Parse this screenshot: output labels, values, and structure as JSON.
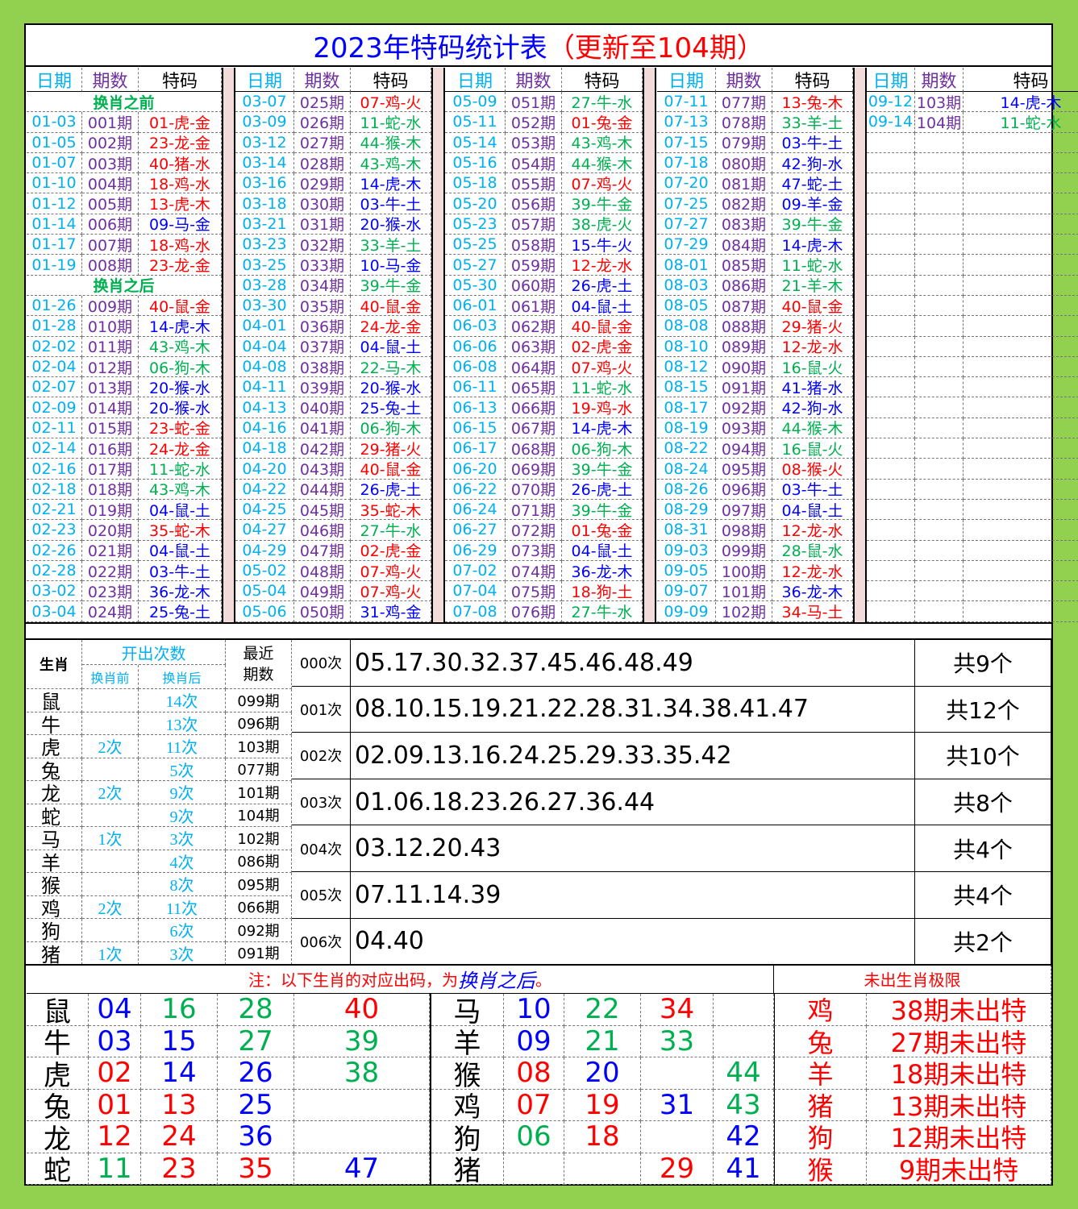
{
  "title": {
    "main": "2023年特码统计表",
    "update": "（更新至104期）"
  },
  "top": {
    "headers": [
      "日期",
      "期数",
      "特码"
    ],
    "groups": [
      {
        "rows": [
          "换肖之前",
          [
            "01-03",
            "001期",
            "01-虎-金",
            "#ff0000"
          ],
          [
            "01-05",
            "002期",
            "23-龙-金",
            "#ff0000"
          ],
          [
            "01-07",
            "003期",
            "40-猪-水",
            "#ff0000"
          ],
          [
            "01-10",
            "004期",
            "18-鸡-水",
            "#ff0000"
          ],
          [
            "01-12",
            "005期",
            "13-虎-木",
            "#ff0000"
          ],
          [
            "01-14",
            "006期",
            "09-马-金",
            "#0000ff"
          ],
          [
            "01-17",
            "007期",
            "18-鸡-水",
            "#ff0000"
          ],
          [
            "01-19",
            "008期",
            "23-龙-金",
            "#ff0000"
          ],
          "换肖之后",
          [
            "01-26",
            "009期",
            "40-鼠-金",
            "#ff0000"
          ],
          [
            "01-28",
            "010期",
            "14-虎-木",
            "#0000ff"
          ],
          [
            "02-02",
            "011期",
            "43-鸡-木",
            "#00b050"
          ],
          [
            "02-04",
            "012期",
            "06-狗-木",
            "#00b050"
          ],
          [
            "02-07",
            "013期",
            "20-猴-水",
            "#0000ff"
          ],
          [
            "02-09",
            "014期",
            "20-猴-水",
            "#0000ff"
          ],
          [
            "02-11",
            "015期",
            "23-蛇-金",
            "#ff0000"
          ],
          [
            "02-14",
            "016期",
            "24-龙-金",
            "#ff0000"
          ],
          [
            "02-16",
            "017期",
            "11-蛇-水",
            "#00b050"
          ],
          [
            "02-18",
            "018期",
            "43-鸡-木",
            "#00b050"
          ],
          [
            "02-21",
            "019期",
            "04-鼠-土",
            "#0000ff"
          ],
          [
            "02-23",
            "020期",
            "35-蛇-木",
            "#ff0000"
          ],
          [
            "02-26",
            "021期",
            "04-鼠-土",
            "#0000ff"
          ],
          [
            "02-28",
            "022期",
            "03-牛-土",
            "#0000ff"
          ],
          [
            "03-02",
            "023期",
            "36-龙-木",
            "#0000ff"
          ],
          [
            "03-04",
            "024期",
            "25-兔-土",
            "#0000ff"
          ]
        ]
      },
      {
        "rows": [
          [
            "03-07",
            "025期",
            "07-鸡-火",
            "#ff0000"
          ],
          [
            "03-09",
            "026期",
            "11-蛇-水",
            "#00b050"
          ],
          [
            "03-12",
            "027期",
            "44-猴-木",
            "#00b050"
          ],
          [
            "03-14",
            "028期",
            "43-鸡-木",
            "#00b050"
          ],
          [
            "03-16",
            "029期",
            "14-虎-木",
            "#0000ff"
          ],
          [
            "03-18",
            "030期",
            "03-牛-土",
            "#0000ff"
          ],
          [
            "03-21",
            "031期",
            "20-猴-水",
            "#0000ff"
          ],
          [
            "03-23",
            "032期",
            "33-羊-土",
            "#00b050"
          ],
          [
            "03-25",
            "033期",
            "10-马-金",
            "#0000ff"
          ],
          [
            "03-28",
            "034期",
            "39-牛-金",
            "#00b050"
          ],
          [
            "03-30",
            "035期",
            "40-鼠-金",
            "#ff0000"
          ],
          [
            "04-01",
            "036期",
            "24-龙-金",
            "#ff0000"
          ],
          [
            "04-04",
            "037期",
            "04-鼠-土",
            "#0000ff"
          ],
          [
            "04-08",
            "038期",
            "22-马-木",
            "#00b050"
          ],
          [
            "04-11",
            "039期",
            "20-猴-水",
            "#0000ff"
          ],
          [
            "04-13",
            "040期",
            "25-兔-土",
            "#0000ff"
          ],
          [
            "04-16",
            "041期",
            "06-狗-木",
            "#00b050"
          ],
          [
            "04-18",
            "042期",
            "29-猪-火",
            "#ff0000"
          ],
          [
            "04-20",
            "043期",
            "40-鼠-金",
            "#ff0000"
          ],
          [
            "04-22",
            "044期",
            "26-虎-土",
            "#0000ff"
          ],
          [
            "04-25",
            "045期",
            "35-蛇-木",
            "#ff0000"
          ],
          [
            "04-27",
            "046期",
            "27-牛-水",
            "#00b050"
          ],
          [
            "04-29",
            "047期",
            "02-虎-金",
            "#ff0000"
          ],
          [
            "05-02",
            "048期",
            "07-鸡-火",
            "#ff0000"
          ],
          [
            "05-04",
            "049期",
            "07-鸡-火",
            "#ff0000"
          ],
          [
            "05-06",
            "050期",
            "31-鸡-金",
            "#0000ff"
          ]
        ]
      },
      {
        "rows": [
          [
            "05-09",
            "051期",
            "27-牛-水",
            "#00b050"
          ],
          [
            "05-11",
            "052期",
            "01-兔-金",
            "#ff0000"
          ],
          [
            "05-14",
            "053期",
            "43-鸡-木",
            "#00b050"
          ],
          [
            "05-16",
            "054期",
            "44-猴-木",
            "#00b050"
          ],
          [
            "05-18",
            "055期",
            "07-鸡-火",
            "#ff0000"
          ],
          [
            "05-20",
            "056期",
            "39-牛-金",
            "#00b050"
          ],
          [
            "05-23",
            "057期",
            "38-虎-火",
            "#00b050"
          ],
          [
            "05-25",
            "058期",
            "15-牛-火",
            "#0000ff"
          ],
          [
            "05-27",
            "059期",
            "12-龙-水",
            "#ff0000"
          ],
          [
            "05-30",
            "060期",
            "26-虎-土",
            "#0000ff"
          ],
          [
            "06-01",
            "061期",
            "04-鼠-土",
            "#0000ff"
          ],
          [
            "06-03",
            "062期",
            "40-鼠-金",
            "#ff0000"
          ],
          [
            "06-06",
            "063期",
            "02-虎-金",
            "#ff0000"
          ],
          [
            "06-08",
            "064期",
            "07-鸡-火",
            "#ff0000"
          ],
          [
            "06-11",
            "065期",
            "11-蛇-水",
            "#00b050"
          ],
          [
            "06-13",
            "066期",
            "19-鸡-水",
            "#ff0000"
          ],
          [
            "06-15",
            "067期",
            "14-虎-木",
            "#0000ff"
          ],
          [
            "06-17",
            "068期",
            "06-狗-木",
            "#00b050"
          ],
          [
            "06-20",
            "069期",
            "39-牛-金",
            "#00b050"
          ],
          [
            "06-22",
            "070期",
            "26-虎-土",
            "#0000ff"
          ],
          [
            "06-24",
            "071期",
            "39-牛-金",
            "#00b050"
          ],
          [
            "06-27",
            "072期",
            "01-兔-金",
            "#ff0000"
          ],
          [
            "06-29",
            "073期",
            "04-鼠-土",
            "#0000ff"
          ],
          [
            "07-02",
            "074期",
            "36-龙-木",
            "#0000ff"
          ],
          [
            "07-04",
            "075期",
            "18-狗-土",
            "#ff0000"
          ],
          [
            "07-08",
            "076期",
            "27-牛-水",
            "#00b050"
          ]
        ]
      },
      {
        "rows": [
          [
            "07-11",
            "077期",
            "13-兔-木",
            "#ff0000"
          ],
          [
            "07-13",
            "078期",
            "33-羊-土",
            "#00b050"
          ],
          [
            "07-15",
            "079期",
            "03-牛-土",
            "#0000ff"
          ],
          [
            "07-18",
            "080期",
            "42-狗-水",
            "#0000ff"
          ],
          [
            "07-20",
            "081期",
            "47-蛇-土",
            "#0000ff"
          ],
          [
            "07-25",
            "082期",
            "09-羊-金",
            "#0000ff"
          ],
          [
            "07-27",
            "083期",
            "39-牛-金",
            "#00b050"
          ],
          [
            "07-29",
            "084期",
            "14-虎-木",
            "#0000ff"
          ],
          [
            "08-01",
            "085期",
            "11-蛇-水",
            "#00b050"
          ],
          [
            "08-03",
            "086期",
            "21-羊-木",
            "#00b050"
          ],
          [
            "08-05",
            "087期",
            "40-鼠-金",
            "#ff0000"
          ],
          [
            "08-08",
            "088期",
            "29-猪-火",
            "#ff0000"
          ],
          [
            "08-10",
            "089期",
            "12-龙-水",
            "#ff0000"
          ],
          [
            "08-12",
            "090期",
            "16-鼠-火",
            "#00b050"
          ],
          [
            "08-15",
            "091期",
            "41-猪-水",
            "#0000ff"
          ],
          [
            "08-17",
            "092期",
            "42-狗-水",
            "#0000ff"
          ],
          [
            "08-19",
            "093期",
            "44-猴-木",
            "#00b050"
          ],
          [
            "08-22",
            "094期",
            "16-鼠-火",
            "#00b050"
          ],
          [
            "08-24",
            "095期",
            "08-猴-火",
            "#ff0000"
          ],
          [
            "08-26",
            "096期",
            "03-牛-土",
            "#0000ff"
          ],
          [
            "08-29",
            "097期",
            "04-鼠-土",
            "#0000ff"
          ],
          [
            "08-31",
            "098期",
            "12-龙-水",
            "#ff0000"
          ],
          [
            "09-03",
            "099期",
            "28-鼠-水",
            "#00b050"
          ],
          [
            "09-05",
            "100期",
            "12-龙-水",
            "#ff0000"
          ],
          [
            "09-07",
            "101期",
            "36-龙-木",
            "#0000ff"
          ],
          [
            "09-09",
            "102期",
            "34-马-土",
            "#ff0000"
          ]
        ]
      },
      {
        "rows": [
          [
            "09-12",
            "103期",
            "14-虎-木",
            "#0000ff"
          ],
          [
            "09-14",
            "104期",
            "11-蛇-水",
            "#00b050"
          ]
        ]
      }
    ]
  },
  "zodiac_table": {
    "header": {
      "zodiac": "生肖",
      "count": "开出次数",
      "before": "换肖前",
      "after": "换肖后",
      "recent": "最近期数"
    },
    "rows": [
      [
        "鼠",
        null,
        "14次",
        "099期"
      ],
      [
        "牛",
        null,
        "13次",
        "096期"
      ],
      [
        "虎",
        "2次",
        "11次",
        "103期"
      ],
      [
        "兔",
        null,
        "5次",
        "077期"
      ],
      [
        "龙",
        "2次",
        "9次",
        "101期"
      ],
      [
        "蛇",
        null,
        "9次",
        "104期"
      ],
      [
        "马",
        "1次",
        "3次",
        "102期"
      ],
      [
        "羊",
        null,
        "4次",
        "086期"
      ],
      [
        "猴",
        null,
        "8次",
        "095期"
      ],
      [
        "鸡",
        "2次",
        "11次",
        "066期"
      ],
      [
        "狗",
        null,
        "6次",
        "092期"
      ],
      [
        "猪",
        "1次",
        "3次",
        "091期"
      ]
    ]
  },
  "frequency_table": {
    "rows": [
      [
        "000次",
        "05.17.30.32.37.45.46.48.49",
        "共9个"
      ],
      [
        "001次",
        "08.10.15.19.21.22.28.31.34.38.41.47",
        "共12个"
      ],
      [
        "002次",
        "02.09.13.16.24.25.29.33.35.42",
        "共10个"
      ],
      [
        "003次",
        "01.06.18.23.26.27.36.44",
        "共8个"
      ],
      [
        "004次",
        "03.12.20.43",
        "共4个"
      ],
      [
        "005次",
        "07.11.14.39",
        "共4个"
      ],
      [
        "006次",
        "04.40",
        "共2个"
      ]
    ]
  },
  "bottom": {
    "note": {
      "prefix": "注：以下生肖的对应出码，为",
      "emphasis": "换肖之后",
      "suffix": "。"
    },
    "limit_header": "未出生肖极限",
    "left_rows": [
      {
        "zodiac": "鼠",
        "numbers": [
          [
            "04",
            "#0000ff"
          ],
          [
            "16",
            "#00b050"
          ],
          [
            "28",
            "#00b050"
          ],
          [
            "40",
            "#ff0000"
          ]
        ]
      },
      {
        "zodiac": "牛",
        "numbers": [
          [
            "03",
            "#0000ff"
          ],
          [
            "15",
            "#0000ff"
          ],
          [
            "27",
            "#00b050"
          ],
          [
            "39",
            "#00b050"
          ]
        ]
      },
      {
        "zodiac": "虎",
        "numbers": [
          [
            "02",
            "#ff0000"
          ],
          [
            "14",
            "#0000ff"
          ],
          [
            "26",
            "#0000ff"
          ],
          [
            "38",
            "#00b050"
          ]
        ]
      },
      {
        "zodiac": "兔",
        "numbers": [
          [
            "01",
            "#ff0000"
          ],
          [
            "13",
            "#ff0000"
          ],
          [
            "25",
            "#0000ff"
          ],
          null
        ]
      },
      {
        "zodiac": "龙",
        "numbers": [
          [
            "12",
            "#ff0000"
          ],
          [
            "24",
            "#ff0000"
          ],
          [
            "36",
            "#0000ff"
          ],
          null
        ]
      },
      {
        "zodiac": "蛇",
        "numbers": [
          [
            "11",
            "#00b050"
          ],
          [
            "23",
            "#ff0000"
          ],
          [
            "35",
            "#ff0000"
          ],
          [
            "47",
            "#0000ff"
          ]
        ]
      }
    ],
    "right_rows": [
      {
        "zodiac": "马",
        "numbers": [
          [
            "10",
            "#0000ff"
          ],
          [
            "22",
            "#00b050"
          ],
          [
            "34",
            "#ff0000"
          ],
          null
        ]
      },
      {
        "zodiac": "羊",
        "numbers": [
          [
            "09",
            "#0000ff"
          ],
          [
            "21",
            "#00b050"
          ],
          [
            "33",
            "#00b050"
          ],
          null
        ]
      },
      {
        "zodiac": "猴",
        "numbers": [
          [
            "08",
            "#ff0000"
          ],
          [
            "20",
            "#0000ff"
          ],
          null,
          [
            "44",
            "#00b050"
          ]
        ]
      },
      {
        "zodiac": "鸡",
        "numbers": [
          [
            "07",
            "#ff0000"
          ],
          [
            "19",
            "#ff0000"
          ],
          [
            "31",
            "#0000ff"
          ],
          [
            "43",
            "#00b050"
          ]
        ]
      },
      {
        "zodiac": "狗",
        "numbers": [
          [
            "06",
            "#00b050"
          ],
          [
            "18",
            "#ff0000"
          ],
          null,
          [
            "42",
            "#0000ff"
          ]
        ]
      },
      {
        "zodiac": "猪",
        "numbers": [
          null,
          null,
          [
            "29",
            "#ff0000"
          ],
          [
            "41",
            "#0000ff"
          ]
        ]
      }
    ],
    "limit_rows": [
      [
        "鸡",
        "38期未出特"
      ],
      [
        "兔",
        "27期未出特"
      ],
      [
        "羊",
        "18期未出特"
      ],
      [
        "猪",
        "13期未出特"
      ],
      [
        "狗",
        "12期未出特"
      ],
      [
        "猴",
        "9期未出特"
      ]
    ]
  }
}
